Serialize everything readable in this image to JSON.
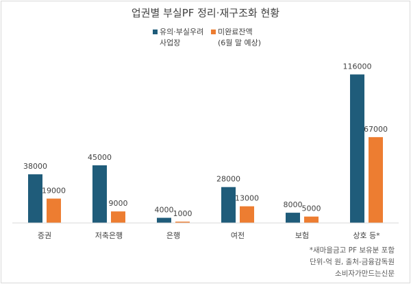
{
  "chart_data": {
    "type": "bar",
    "title": "업권별 부실PF 정리·재구조화 현황",
    "categories": [
      "증권",
      "저축은행",
      "은행",
      "여전",
      "보험",
      "상호 등*"
    ],
    "series": [
      {
        "name_lines": [
          "유의·부실우려",
          "사업장"
        ],
        "color": "#1f5c7a",
        "values": [
          38000,
          45000,
          4000,
          28000,
          8000,
          116000
        ]
      },
      {
        "name_lines": [
          "미완료잔액",
          "(6월 말 예상)"
        ],
        "color": "#ed7d31",
        "values": [
          19000,
          9000,
          1000,
          13000,
          5000,
          67000
        ]
      }
    ],
    "data_labels": [
      [
        "38000",
        "45000",
        "4000",
        "28000",
        "8000",
        "116000"
      ],
      [
        "19000",
        "9000",
        "1000",
        "13000",
        "5000",
        "67000"
      ]
    ],
    "ylim": [
      0,
      120000
    ],
    "legend_position": "top-center",
    "grid": false,
    "notes": [
      "*새마을금고 PF 보유분 포함",
      "단위-억 원, 출처-금융감독원",
      "소비자가만드는신문"
    ]
  }
}
